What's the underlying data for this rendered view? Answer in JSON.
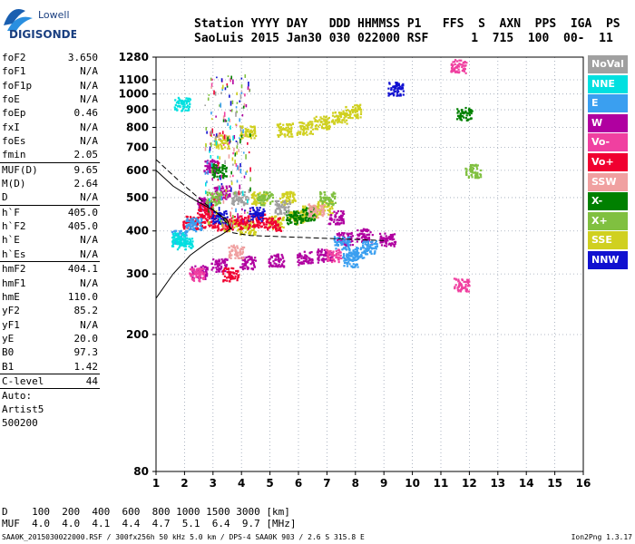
{
  "logo": {
    "line1": "Lowell",
    "line2": "DIGISONDE"
  },
  "header": {
    "line1": "Station YYYY DAY   DDD HHMMSS P1   FFS  S  AXN  PPS  IGA  PS",
    "line2": "SaoLuis 2015 Jan30 030 022000 RSF      1  715  100  00-  11"
  },
  "params": [
    {
      "name": "foF2",
      "value": "3.650"
    },
    {
      "name": "foF1",
      "value": "N/A"
    },
    {
      "name": "foF1p",
      "value": "N/A"
    },
    {
      "name": "foE",
      "value": "N/A"
    },
    {
      "name": "foEp",
      "value": "0.46"
    },
    {
      "name": "fxI",
      "value": "N/A"
    },
    {
      "name": "foEs",
      "value": "N/A"
    },
    {
      "name": "fmin",
      "value": "2.05"
    },
    {
      "divider": true
    },
    {
      "name": "MUF(D)",
      "value": "9.65"
    },
    {
      "name": "M(D)",
      "value": "2.64"
    },
    {
      "name": "D",
      "value": "N/A"
    },
    {
      "divider": true
    },
    {
      "name": "h`F",
      "value": "405.0"
    },
    {
      "name": "h`F2",
      "value": "405.0"
    },
    {
      "name": "h`E",
      "value": "N/A"
    },
    {
      "name": "h`Es",
      "value": "N/A"
    },
    {
      "divider": true
    },
    {
      "name": "hmF2",
      "value": "404.1"
    },
    {
      "name": "hmF1",
      "value": "N/A"
    },
    {
      "name": "hmE",
      "value": "110.0"
    },
    {
      "name": "yF2",
      "value": "85.2"
    },
    {
      "name": "yF1",
      "value": "N/A"
    },
    {
      "name": "yE",
      "value": "20.0"
    },
    {
      "name": "B0",
      "value": "97.3"
    },
    {
      "name": "B1",
      "value": "1.42"
    },
    {
      "divider": true
    },
    {
      "name": "C-level",
      "value": "44"
    },
    {
      "divider": true
    },
    {
      "name": "Auto:",
      "value": ""
    },
    {
      "name": "Artist5",
      "value": ""
    },
    {
      "name": "500200",
      "value": ""
    }
  ],
  "legend": [
    {
      "label": "NoVal",
      "color": "#a0a0a0"
    },
    {
      "label": "NNE",
      "color": "#00e0e0"
    },
    {
      "label": "E",
      "color": "#3a9ff0"
    },
    {
      "label": "W",
      "color": "#b000a0"
    },
    {
      "label": "Vo-",
      "color": "#f040a0"
    },
    {
      "label": "Vo+",
      "color": "#f00030"
    },
    {
      "label": "SSW",
      "color": "#f0a0a0"
    },
    {
      "label": "X-",
      "color": "#008000"
    },
    {
      "label": "X+",
      "color": "#80c040"
    },
    {
      "label": "SSE",
      "color": "#d0d020"
    },
    {
      "label": "NNW",
      "color": "#1010d0"
    }
  ],
  "chart_data": {
    "type": "scatter",
    "title": "",
    "xlabel": "",
    "ylabel": "",
    "xlim": [
      1,
      16
    ],
    "ylim": [
      80,
      1280
    ],
    "y_scale": "log",
    "x_ticks": [
      1,
      2,
      3,
      4,
      5,
      6,
      7,
      8,
      9,
      10,
      11,
      12,
      13,
      14,
      15,
      16
    ],
    "y_ticks": [
      80,
      200,
      300,
      400,
      500,
      600,
      700,
      800,
      900,
      1000,
      1100,
      1280
    ],
    "grid": "dotted",
    "legend_position": "right",
    "series": [
      {
        "color": "#d0d020",
        "points": [
          [
            4.2,
            780
          ],
          [
            5.5,
            790
          ],
          [
            6.2,
            800
          ],
          [
            6.8,
            830
          ],
          [
            7.4,
            860
          ],
          [
            7.9,
            895
          ],
          [
            3.3,
            730
          ],
          [
            3.6,
            420
          ],
          [
            4.2,
            410
          ],
          [
            5.2,
            425
          ],
          [
            5.9,
            440
          ],
          [
            6.4,
            455
          ],
          [
            6.9,
            470
          ],
          [
            4.6,
            500
          ],
          [
            5.6,
            500
          ]
        ]
      },
      {
        "color": "#b000a0",
        "points": [
          [
            2.5,
            305
          ],
          [
            3.2,
            320
          ],
          [
            4.2,
            325
          ],
          [
            5.2,
            330
          ],
          [
            6.2,
            335
          ],
          [
            6.9,
            340
          ],
          [
            7.6,
            380
          ],
          [
            8.3,
            390
          ],
          [
            9.1,
            380
          ],
          [
            7.3,
            440
          ],
          [
            2.7,
            480
          ],
          [
            3.3,
            520
          ],
          [
            2.9,
            620
          ]
        ]
      },
      {
        "color": "#f00030",
        "points": [
          [
            2.2,
            425
          ],
          [
            2.8,
            430
          ],
          [
            3.4,
            420
          ],
          [
            4.0,
            425
          ],
          [
            4.6,
            430
          ],
          [
            5.1,
            420
          ],
          [
            2.7,
            460
          ],
          [
            3.6,
            300
          ]
        ]
      },
      {
        "color": "#3a9ff0",
        "points": [
          [
            7.8,
            330
          ],
          [
            8.5,
            360
          ],
          [
            7.5,
            370
          ],
          [
            8.0,
            345
          ],
          [
            1.8,
            385
          ],
          [
            2.3,
            420
          ]
        ]
      },
      {
        "color": "#1010d0",
        "points": [
          [
            9.4,
            1040
          ],
          [
            3.2,
            440
          ],
          [
            4.5,
            450
          ]
        ]
      },
      {
        "color": "#f040a0",
        "points": [
          [
            11.6,
            1210
          ],
          [
            11.7,
            280
          ],
          [
            2.4,
            300
          ],
          [
            7.2,
            340
          ]
        ]
      },
      {
        "color": "#008000",
        "points": [
          [
            5.8,
            440
          ],
          [
            6.3,
            450
          ],
          [
            3.2,
            600
          ],
          [
            11.8,
            880
          ]
        ]
      },
      {
        "color": "#80c040",
        "points": [
          [
            3.0,
            500
          ],
          [
            4.8,
            500
          ],
          [
            12.1,
            600
          ],
          [
            7.0,
            500
          ]
        ]
      },
      {
        "color": "#00e0e0",
        "points": [
          [
            1.8,
            380
          ],
          [
            2.0,
            370
          ],
          [
            1.9,
            940
          ]
        ]
      },
      {
        "color": "#a0a0a0",
        "points": [
          [
            3.9,
            500
          ],
          [
            5.4,
            470
          ]
        ]
      },
      {
        "color": "#f0a0a0",
        "points": [
          [
            6.6,
            460
          ],
          [
            3.8,
            350
          ]
        ]
      }
    ]
  },
  "dmuf": {
    "d_label": "D",
    "d_values": "100  200  400  600  800 1000 1500 3000 [km]",
    "muf_label": "MUF",
    "muf_values": "4.0  4.0  4.1  4.4  4.7  5.1  6.4  9.7 [MHz]"
  },
  "footer": {
    "text": "SAA0K_2015030022000.RSF / 300fx256h 50 kHz 5.0 km / DPS-4 SAA0K 903 / 2.6 S 315.8 E",
    "version": "Ion2Png 1.3.17"
  }
}
